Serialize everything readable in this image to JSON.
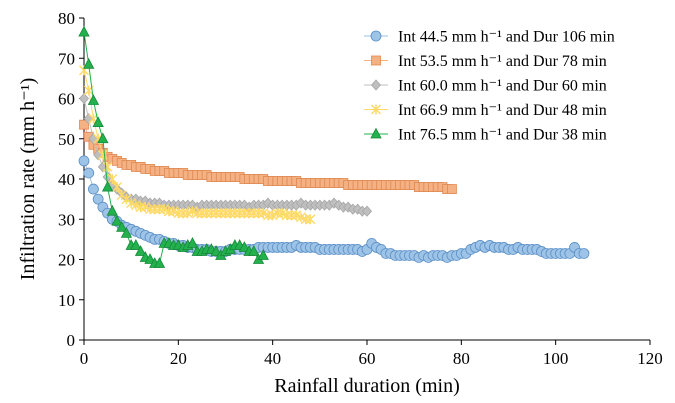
{
  "chart_data": {
    "type": "scatter",
    "xlabel": "Rainfall duration (min)",
    "ylabel": "Infiltration rate (mm h⁻¹)",
    "xlim": [
      0,
      120
    ],
    "ylim": [
      0,
      80
    ],
    "xticks": [
      0,
      20,
      40,
      60,
      80,
      100,
      120
    ],
    "yticks": [
      0,
      10,
      20,
      30,
      40,
      50,
      60,
      70,
      80
    ],
    "grid": false,
    "legend_position": "top-right",
    "series": [
      {
        "name": "Int 44.5 mm h⁻¹ and Dur 106 min",
        "marker": "circle",
        "fill": "#9dc3e6",
        "stroke": "#5b8fc7",
        "line": "#9dc3e6",
        "x": [
          0,
          1,
          2,
          3,
          4,
          5,
          6,
          7,
          8,
          9,
          10,
          11,
          12,
          13,
          14,
          15,
          16,
          17,
          18,
          19,
          20,
          21,
          22,
          23,
          24,
          25,
          26,
          27,
          28,
          29,
          30,
          31,
          32,
          33,
          34,
          35,
          36,
          37,
          38,
          39,
          40,
          41,
          42,
          43,
          44,
          45,
          46,
          47,
          48,
          49,
          50,
          51,
          52,
          53,
          54,
          55,
          56,
          57,
          58,
          59,
          60,
          61,
          62,
          63,
          64,
          65,
          66,
          67,
          68,
          69,
          70,
          71,
          72,
          73,
          74,
          75,
          76,
          77,
          78,
          79,
          80,
          81,
          82,
          83,
          84,
          85,
          86,
          87,
          88,
          89,
          90,
          91,
          92,
          93,
          94,
          95,
          96,
          97,
          98,
          99,
          100,
          101,
          102,
          103,
          104,
          105,
          106
        ],
        "y": [
          44.5,
          41.5,
          37.5,
          35,
          33,
          31.5,
          30,
          29.5,
          28.5,
          28,
          27.5,
          27,
          26.5,
          26,
          25.5,
          25,
          25,
          24.5,
          24,
          24,
          23.5,
          23.5,
          23,
          23,
          22.5,
          22.5,
          22.5,
          22,
          22,
          22,
          22,
          22.5,
          22.5,
          22.5,
          22.5,
          22.5,
          22.5,
          23,
          23,
          23,
          23,
          23,
          23,
          23,
          23,
          23.5,
          23,
          23,
          23,
          23,
          22.5,
          22.5,
          22.5,
          22.5,
          22.5,
          22.5,
          22.5,
          22.5,
          22.5,
          22,
          22.5,
          24,
          23,
          22.5,
          21.5,
          21.5,
          21,
          21,
          21,
          21,
          21,
          20.5,
          21,
          20.5,
          21,
          21,
          21,
          20.5,
          21,
          21,
          21.5,
          21.5,
          22.5,
          23,
          23.5,
          23,
          23.5,
          23,
          23,
          23,
          22.5,
          22.5,
          23,
          22.5,
          22.5,
          22.5,
          22.5,
          22,
          21.5,
          21.5,
          21.5,
          21.5,
          21.5,
          21.5,
          23,
          21.5,
          21.5
        ]
      },
      {
        "name": "Int 53.5 mm h⁻¹ and Dur 78 min",
        "marker": "square",
        "fill": "#f4b183",
        "stroke": "#e08850",
        "line": "#f4b183",
        "x": [
          0,
          1,
          2,
          3,
          4,
          5,
          6,
          7,
          8,
          9,
          10,
          11,
          12,
          13,
          14,
          15,
          16,
          17,
          18,
          19,
          20,
          21,
          22,
          23,
          24,
          25,
          26,
          27,
          28,
          29,
          30,
          31,
          32,
          33,
          34,
          35,
          36,
          37,
          38,
          39,
          40,
          41,
          42,
          43,
          44,
          45,
          46,
          47,
          48,
          49,
          50,
          51,
          52,
          53,
          54,
          55,
          56,
          57,
          58,
          59,
          60,
          61,
          62,
          63,
          64,
          65,
          66,
          67,
          68,
          69,
          70,
          71,
          72,
          73,
          74,
          75,
          76,
          77,
          78
        ],
        "y": [
          53.5,
          50.5,
          48.5,
          47.5,
          46.5,
          45.5,
          45,
          44.5,
          44,
          43.5,
          43.5,
          43,
          43,
          42.5,
          42.5,
          42,
          42,
          42,
          41.5,
          41.5,
          41.5,
          41.5,
          41,
          41,
          41,
          41,
          41,
          40.5,
          40.5,
          40.5,
          40.5,
          40.5,
          40.5,
          40.5,
          40,
          40,
          40,
          40,
          40,
          39.5,
          39.5,
          39.5,
          39.5,
          39.5,
          39.5,
          39.5,
          39,
          39,
          39,
          39,
          39,
          39,
          39,
          39,
          39,
          39,
          38.5,
          38.5,
          38.5,
          38.5,
          38.5,
          38.5,
          38.5,
          38.5,
          38.5,
          38.5,
          38.5,
          38.5,
          38.5,
          38.5,
          38.5,
          38,
          38,
          38,
          38,
          38,
          38,
          37.5,
          37.5
        ]
      },
      {
        "name": "Int 60.0 mm h⁻¹ and Dur 60 min",
        "marker": "diamond",
        "fill": "#bfbfbf",
        "stroke": "#a6a6a6",
        "line": "#bfbfbf",
        "x": [
          0,
          1,
          2,
          3,
          4,
          5,
          6,
          7,
          8,
          9,
          10,
          11,
          12,
          13,
          14,
          15,
          16,
          17,
          18,
          19,
          20,
          21,
          22,
          23,
          24,
          25,
          26,
          27,
          28,
          29,
          30,
          31,
          32,
          33,
          34,
          35,
          36,
          37,
          38,
          39,
          40,
          41,
          42,
          43,
          44,
          45,
          46,
          47,
          48,
          49,
          50,
          51,
          52,
          53,
          54,
          55,
          56,
          57,
          58,
          59,
          60
        ],
        "y": [
          60,
          55,
          50,
          46,
          43,
          40.5,
          38.5,
          37.5,
          36.5,
          35.5,
          35,
          35,
          34.5,
          34.5,
          34,
          34,
          34,
          33.5,
          33.5,
          33.5,
          33.5,
          33.5,
          33.5,
          33.5,
          33,
          33.5,
          33.5,
          33.5,
          33.5,
          33.5,
          33.5,
          33.5,
          33.5,
          33.5,
          33.5,
          33,
          33.5,
          33.5,
          33.5,
          34,
          33.5,
          33.5,
          33.5,
          33.5,
          33.5,
          33.5,
          34,
          33.5,
          33.5,
          33.5,
          33.5,
          33.5,
          33.5,
          34,
          33.5,
          33,
          33,
          32.5,
          32.5,
          32,
          32
        ]
      },
      {
        "name": "Int 66.9 mm h⁻¹ and Dur 48 min",
        "marker": "star",
        "fill": "#ffd966",
        "stroke": "#f2c14e",
        "line": "#ffd966",
        "x": [
          0,
          1,
          2,
          3,
          4,
          5,
          6,
          7,
          8,
          9,
          10,
          11,
          12,
          13,
          14,
          15,
          16,
          17,
          18,
          19,
          20,
          21,
          22,
          23,
          24,
          25,
          26,
          27,
          28,
          29,
          30,
          31,
          32,
          33,
          34,
          35,
          36,
          37,
          38,
          39,
          40,
          41,
          42,
          43,
          44,
          45,
          46,
          47,
          48
        ],
        "y": [
          67,
          62,
          55,
          50,
          46,
          43,
          40,
          38,
          36,
          35,
          34,
          33.5,
          33,
          33,
          32.5,
          32.5,
          32.5,
          32.5,
          32,
          32,
          31.5,
          31.5,
          31.5,
          32,
          31.5,
          31.5,
          31.5,
          31.5,
          31.5,
          31.5,
          31.5,
          31.5,
          31.5,
          31.5,
          31.5,
          31.5,
          31.5,
          31.5,
          31.5,
          31,
          31,
          31.5,
          31.5,
          31,
          31,
          31,
          30.5,
          30,
          30
        ]
      },
      {
        "name": "Int 76.5 mm h⁻¹ and Dur 38 min",
        "marker": "triangle",
        "fill": "#22b14c",
        "stroke": "#168a3a",
        "line": "#22b14c",
        "x": [
          0,
          1,
          2,
          3,
          4,
          5,
          6,
          7,
          8,
          9,
          10,
          11,
          12,
          13,
          14,
          15,
          16,
          17,
          18,
          19,
          20,
          21,
          22,
          23,
          24,
          25,
          26,
          27,
          28,
          29,
          30,
          31,
          32,
          33,
          34,
          35,
          36,
          37,
          38
        ],
        "y": [
          76.5,
          68.5,
          59.5,
          54,
          50,
          38,
          32,
          29.5,
          28,
          26.5,
          23.5,
          23.5,
          22,
          20.5,
          20,
          19,
          19,
          24,
          24,
          23.5,
          23.5,
          23,
          23.5,
          24,
          22,
          22,
          22.5,
          22.5,
          22,
          21,
          22,
          22.5,
          23.5,
          23.5,
          23,
          22,
          22,
          20,
          21
        ]
      }
    ]
  }
}
